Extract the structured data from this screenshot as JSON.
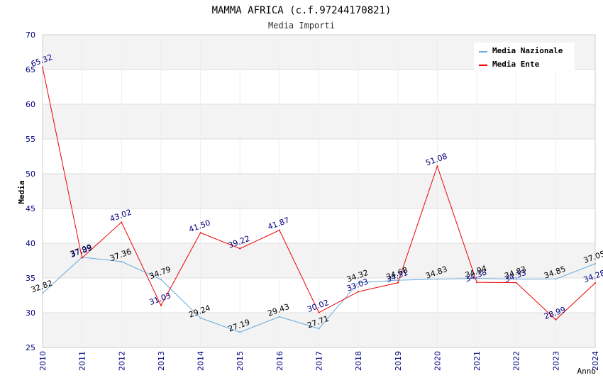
{
  "chart_data": {
    "type": "line",
    "title": "MAMMA AFRICA (c.f.97244170821)",
    "subtitle": "Media Importi",
    "xlabel": "Anno",
    "ylabel": "Media",
    "ylim": [
      25,
      70
    ],
    "yticks": [
      "25",
      "30",
      "35",
      "40",
      "45",
      "50",
      "55",
      "60",
      "65",
      "70"
    ],
    "categories": [
      "2010",
      "2011",
      "2012",
      "2013",
      "2014",
      "2015",
      "2016",
      "2017",
      "2018",
      "2019",
      "2020",
      "2021",
      "2022",
      "2023",
      "2024"
    ],
    "grid": true,
    "legend_position": "top-right",
    "series": [
      {
        "name": "Media Nazionale",
        "color": "#66aadd",
        "label_color": "#000000",
        "values": [
          32.82,
          37.99,
          37.36,
          34.79,
          29.24,
          27.19,
          29.43,
          27.71,
          34.32,
          34.68,
          34.83,
          34.94,
          34.83,
          34.85,
          37.05
        ],
        "labels": [
          "32.82",
          "37.99",
          "37.36",
          "34.79",
          "29.24",
          "27.19",
          "29.43",
          "27.71",
          "34.32",
          "34.68",
          "34.83",
          "34.94",
          "34.83",
          "34.85",
          "37.05"
        ]
      },
      {
        "name": "Media Ente",
        "color": "#ee0000",
        "label_color": "#000080",
        "values": [
          65.32,
          37.89,
          43.02,
          31.03,
          41.5,
          39.22,
          41.87,
          30.02,
          33.03,
          34.31,
          51.08,
          34.38,
          34.33,
          28.99,
          34.28
        ],
        "labels": [
          "65.32",
          "37.89",
          "43.02",
          "31.03",
          "41.50",
          "39.22",
          "41.87",
          "30.02",
          "33.03",
          "34.31",
          "51.08",
          "34.38",
          "34.33",
          "28.99",
          "34.28"
        ]
      }
    ]
  }
}
